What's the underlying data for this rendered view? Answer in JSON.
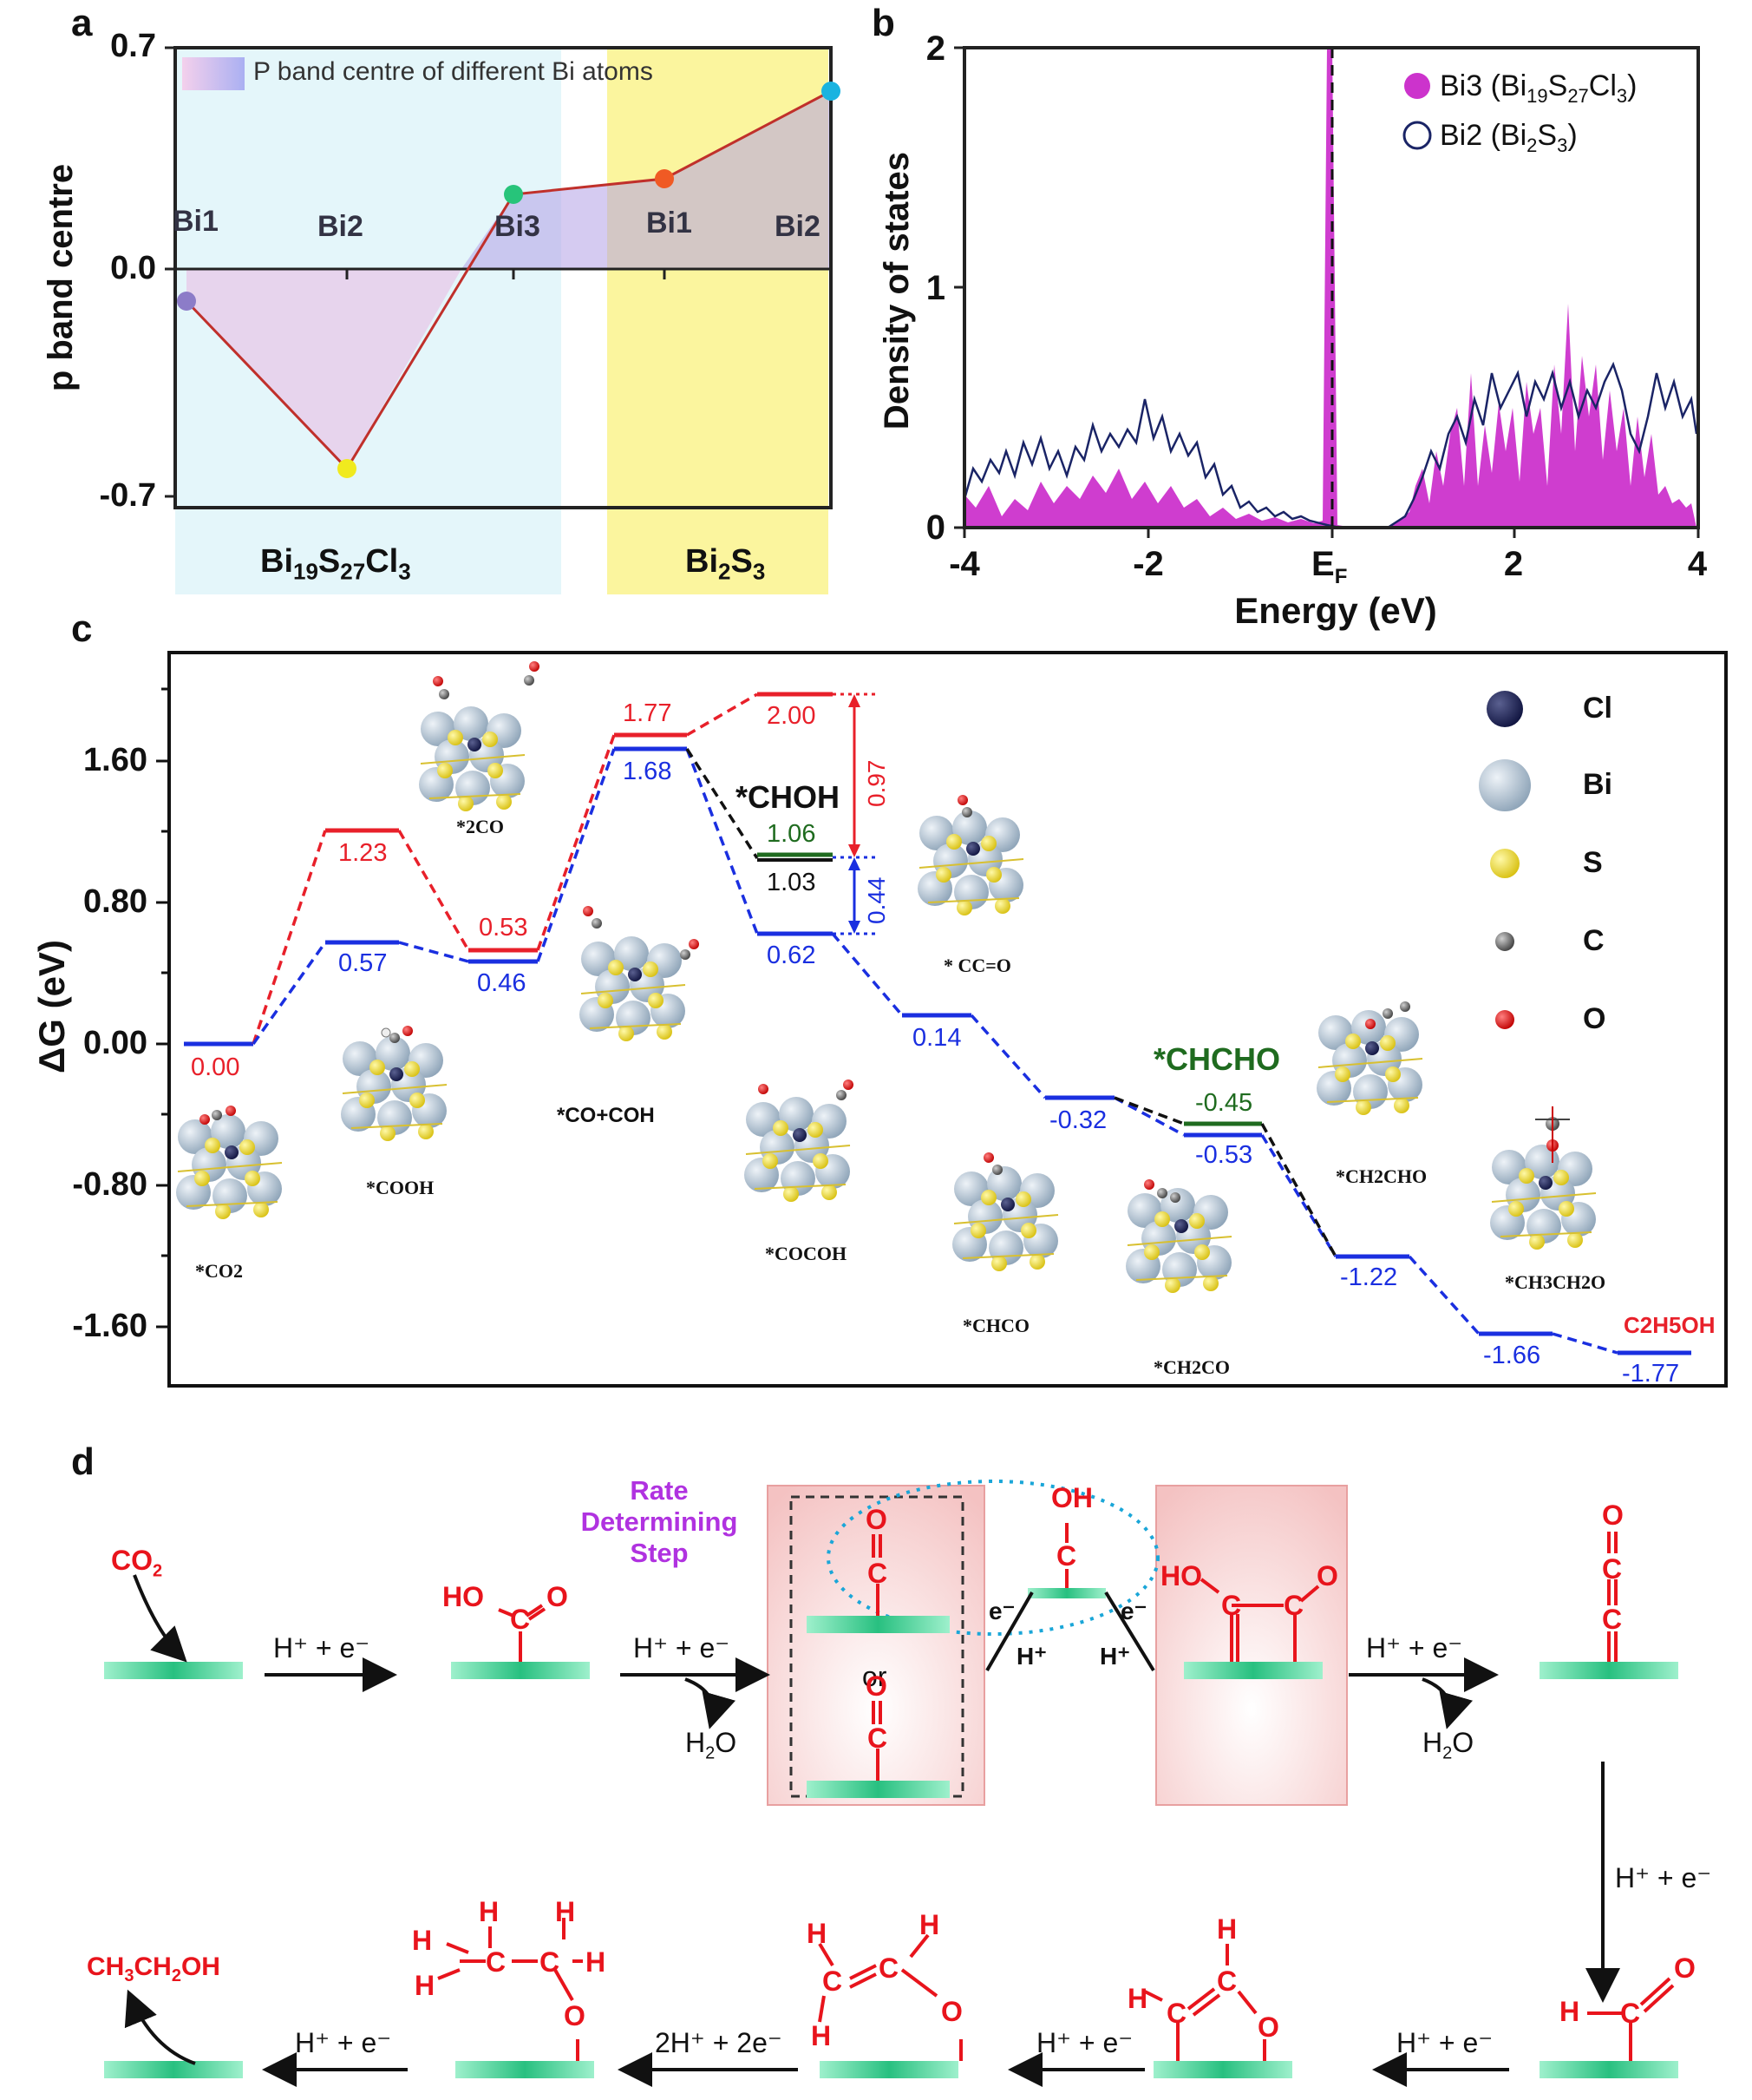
{
  "panels": {
    "a": "a",
    "b": "b",
    "c": "c",
    "d": "d"
  },
  "panel_a": {
    "legend": "P band centre of different Bi atoms",
    "ylabel": "p band centre",
    "yticks": [
      "0.7",
      "0.0",
      "-0.7"
    ],
    "atoms": [
      "Bi1",
      "Bi2",
      "Bi3",
      "Bi1",
      "Bi2"
    ],
    "groups": [
      {
        "label": "Bi",
        "sub1": "19",
        "mid": "S",
        "sub2": "27",
        "end": "Cl",
        "sub3": "3"
      },
      {
        "label": "Bi",
        "sub1": "2",
        "mid": "S",
        "sub2": "3"
      }
    ],
    "colors": {
      "left_band": "#e4f6fa",
      "right_band": "#fbf59e",
      "line": "#c0302b"
    }
  },
  "panel_b": {
    "ylabel": "Density of states",
    "xlabel": "Energy (eV)",
    "xticks": [
      "-4",
      "-2",
      "E",
      "2",
      "4"
    ],
    "xtick_sub": "F",
    "yticks": [
      "0",
      "1",
      "2"
    ],
    "legend": [
      {
        "main": "Bi3 (Bi",
        "sub1": "19",
        "s": "S",
        "sub2": "27",
        "c": "Cl",
        "sub3": "3",
        "close": ")"
      },
      {
        "main": "Bi2 (Bi",
        "sub1": "2",
        "s": "S",
        "sub2": "3",
        "close": ")"
      }
    ],
    "colors": {
      "bi3": "#cc33cc",
      "bi2": "#1a2466"
    }
  },
  "panel_c": {
    "ylabel": "ΔG (eV)",
    "yticks": [
      "1.60",
      "0.80",
      "0.00",
      "-0.80",
      "-1.60"
    ],
    "red_values": [
      "0.00",
      "1.23",
      "0.53",
      "1.77",
      "2.00"
    ],
    "blue_values": [
      "0.57",
      "0.46",
      "1.68",
      "0.62",
      "0.14",
      "-0.32",
      "-0.53",
      "-1.22",
      "-1.66",
      "-1.77"
    ],
    "green_values": [
      "1.06",
      "-0.45"
    ],
    "black_values": [
      "1.03"
    ],
    "gap_values": [
      "0.97",
      "0.44"
    ],
    "intermediates": [
      "*CO2",
      "*COOH",
      "*2CO",
      "*CO+COH",
      "*COCOH",
      "* CC=O",
      "*CHCO",
      "*CH2CO",
      "*CH2CHO",
      "*CH3CH2O"
    ],
    "labels": {
      "choh": "*CHOH",
      "chcho": "*CHCHO",
      "product": "C2H5OH"
    },
    "legend": [
      "Cl",
      "Bi",
      "S",
      "C",
      "O"
    ],
    "colors": {
      "red": "#e8202a",
      "blue": "#1a2fe0",
      "green": "#1f6b1f",
      "cl": "#1c2050",
      "bi": "#b9c8d6",
      "s": "#f2df2a",
      "c": "#707070",
      "o": "#e01010"
    }
  },
  "panel_d": {
    "rds": [
      "Rate",
      "Determining",
      "Step"
    ],
    "co2": "CO",
    "co2_sub": "2",
    "he": "H⁺ + e⁻",
    "he2": "2H⁺ + 2e⁻",
    "e": "e⁻",
    "h": "H⁺",
    "h2o": "H",
    "h2o_sub": "2",
    "h2o_o": "O",
    "or": "or",
    "ethanol": "CH",
    "ethanol_sub1": "3",
    "ethanol_mid": "CH",
    "ethanol_sub2": "2",
    "ethanol_end": "OH",
    "atom_o": "O",
    "atom_c": "C",
    "atom_h": "H",
    "atom_oh": "OH",
    "atom_ho": "HO",
    "colors": {
      "red": "#e8141c",
      "purple": "#b032e0",
      "surface": "#2fc98a",
      "box": "#f4c9c9"
    }
  }
}
